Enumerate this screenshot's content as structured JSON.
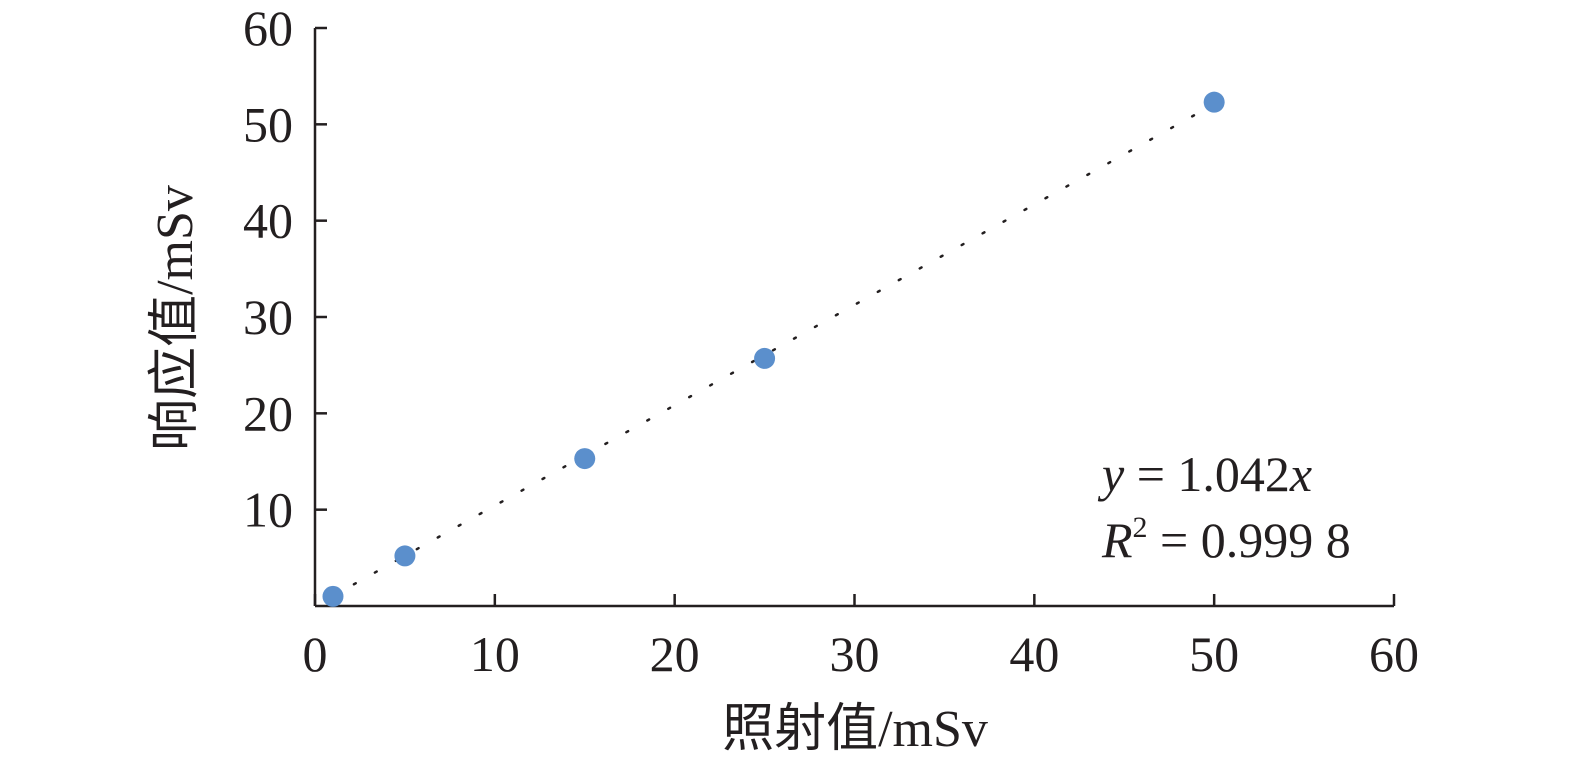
{
  "chart_data": {
    "type": "scatter",
    "xlabel": "照射值/mSv",
    "ylabel": "响应值/mSv",
    "xlim": [
      0,
      60
    ],
    "ylim": [
      0,
      60
    ],
    "x_ticks": [
      "0",
      "10",
      "20",
      "30",
      "40",
      "50",
      "60"
    ],
    "y_ticks": [
      "10",
      "20",
      "30",
      "40",
      "50",
      "60"
    ],
    "grid": false,
    "legend": "none",
    "series": [
      {
        "color": "#5b8fcc",
        "points": [
          {
            "x": 1,
            "y": 1.0
          },
          {
            "x": 5,
            "y": 5.2
          },
          {
            "x": 15,
            "y": 15.3
          },
          {
            "x": 25,
            "y": 25.7
          },
          {
            "x": 50,
            "y": 52.3
          }
        ]
      }
    ],
    "trendline": {
      "style": "dotted",
      "color": "#231f20",
      "slope": 1.042,
      "x_range": [
        1,
        50
      ]
    },
    "annotations": {
      "equation": {
        "lhs": "y",
        "rhs": " = 1.042",
        "var": "x"
      },
      "r2": {
        "symbol": "R",
        "sup": "2",
        "rhs": " = 0.999 8"
      }
    }
  }
}
